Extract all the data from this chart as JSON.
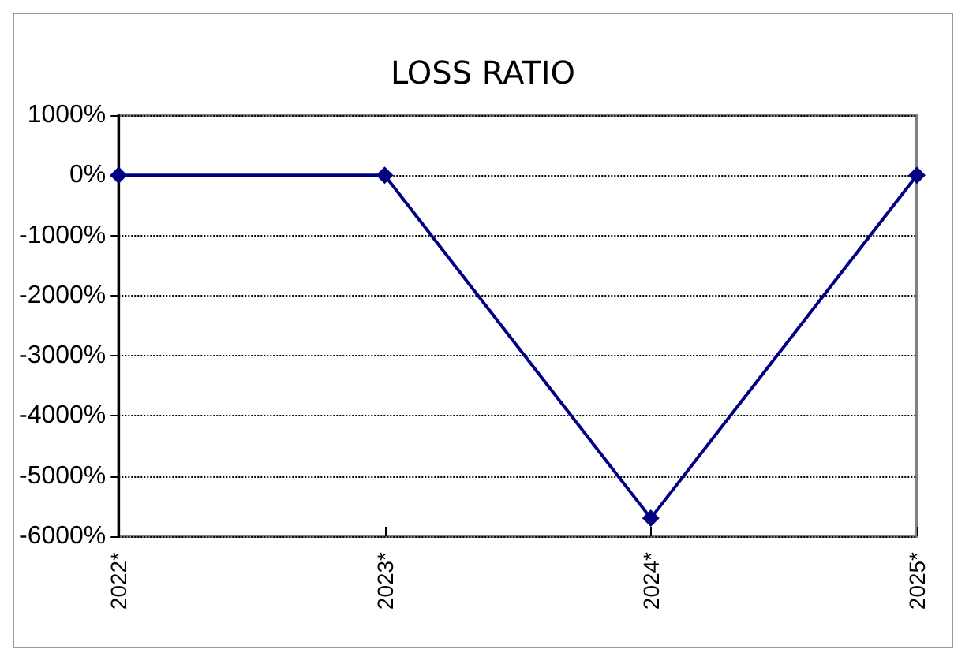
{
  "chart_data": {
    "type": "line",
    "title": "LOSS RATIO",
    "categories": [
      "2022*",
      "2023*",
      "2024*",
      "2025*"
    ],
    "series": [
      {
        "color": "#000080",
        "values": [
          0,
          0,
          -5700,
          0
        ]
      }
    ],
    "ylim": [
      -6000,
      1000
    ],
    "yticks": [
      {
        "value": -6000,
        "label": "-6000%"
      },
      {
        "value": -5000,
        "label": "-5000%"
      },
      {
        "value": -4000,
        "label": "-4000%"
      },
      {
        "value": -3000,
        "label": "-3000%"
      },
      {
        "value": -2000,
        "label": "-2000%"
      },
      {
        "value": -1000,
        "label": "-1000%"
      },
      {
        "value": 0,
        "label": "0%"
      },
      {
        "value": 1000,
        "label": "1000%"
      }
    ],
    "grid": "y",
    "marker": "diamond",
    "line_style": "solid"
  }
}
